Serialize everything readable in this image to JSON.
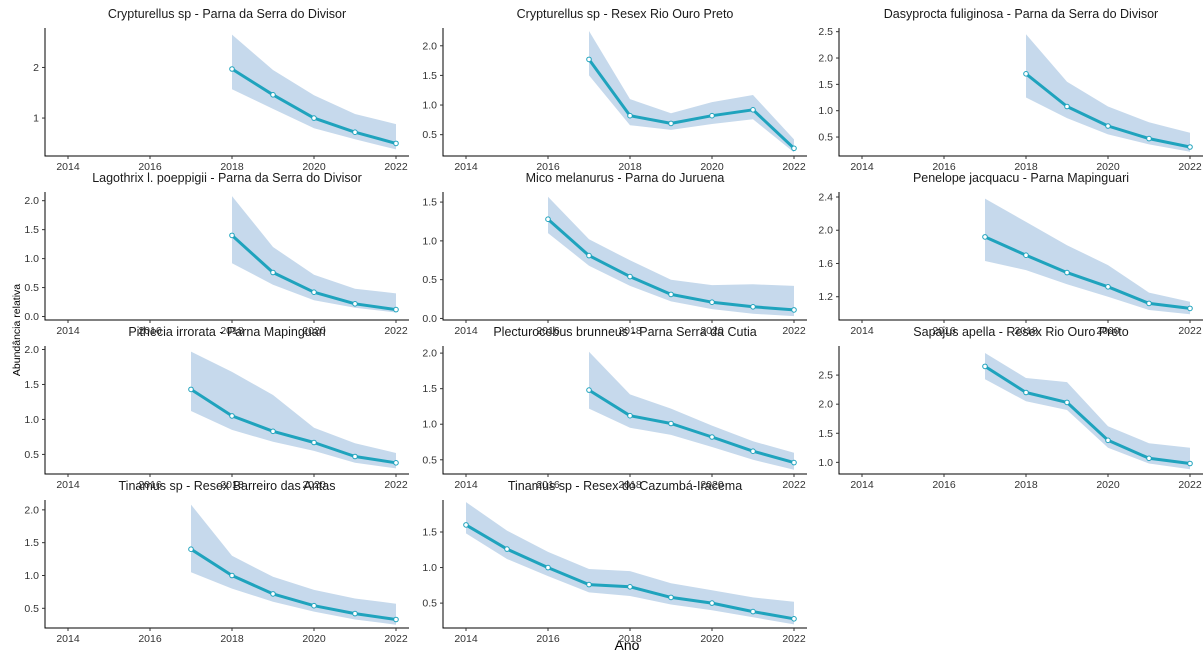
{
  "colors": {
    "line": "#1fa3bd",
    "ribbon": "#c6d9ec",
    "point_fill": "#ffffff",
    "point_stroke": "#1fa3bd",
    "axis": "#000000",
    "text": "#333333"
  },
  "chart_data": {
    "type": "line",
    "layout": "facet-grid",
    "xlabel": "Ano",
    "ylabel": "Abundância relativa",
    "xticks": [
      2014,
      2016,
      2018,
      2020,
      2022
    ],
    "xlim": [
      2013.8,
      2022.3
    ],
    "panels": [
      {
        "title": "Crypturellus sp - Parna da Serra do Divisor",
        "x": [
          2018,
          2019,
          2020,
          2021,
          2022
        ],
        "y": [
          1.97,
          1.46,
          1.0,
          0.72,
          0.5
        ],
        "lower": [
          1.57,
          1.18,
          0.8,
          0.58,
          0.38
        ],
        "upper": [
          2.65,
          1.95,
          1.45,
          1.08,
          0.88
        ],
        "ylim": [
          0.25,
          2.78
        ],
        "yticks": [
          1,
          2
        ],
        "ytick_labels": [
          "1",
          "2"
        ]
      },
      {
        "title": "Crypturellus sp - Resex Rio Ouro Preto",
        "x": [
          2017,
          2018,
          2019,
          2020,
          2021,
          2022
        ],
        "y": [
          1.77,
          0.82,
          0.69,
          0.82,
          0.92,
          0.27
        ],
        "lower": [
          1.5,
          0.66,
          0.58,
          0.68,
          0.76,
          0.2
        ],
        "upper": [
          2.25,
          1.1,
          0.86,
          1.05,
          1.17,
          0.42
        ],
        "ylim": [
          0.14,
          2.3
        ],
        "yticks": [
          0.5,
          1.0,
          1.5,
          2.0
        ],
        "ytick_labels": [
          "0.5",
          "1.0",
          "1.5",
          "2.0"
        ]
      },
      {
        "title": "Dasyprocta fuliginosa - Parna da Serra do Divisor",
        "x": [
          2018,
          2019,
          2020,
          2021,
          2022
        ],
        "y": [
          1.7,
          1.08,
          0.71,
          0.47,
          0.31
        ],
        "lower": [
          1.25,
          0.86,
          0.55,
          0.36,
          0.22
        ],
        "upper": [
          2.45,
          1.55,
          1.08,
          0.78,
          0.58
        ],
        "ylim": [
          0.14,
          2.57
        ],
        "yticks": [
          0.5,
          1.0,
          1.5,
          2.0,
          2.5
        ],
        "ytick_labels": [
          "0.5",
          "1.0",
          "1.5",
          "2.0",
          "2.5"
        ]
      },
      {
        "title": "Lagothrix l. poeppigii - Parna da Serra do Divisor",
        "x": [
          2018,
          2019,
          2020,
          2021,
          2022
        ],
        "y": [
          1.4,
          0.76,
          0.42,
          0.22,
          0.12
        ],
        "lower": [
          0.92,
          0.55,
          0.28,
          0.15,
          0.07
        ],
        "upper": [
          2.08,
          1.2,
          0.72,
          0.48,
          0.4
        ],
        "ylim": [
          -0.06,
          2.15
        ],
        "yticks": [
          0.0,
          0.5,
          1.0,
          1.5,
          2.0
        ],
        "ytick_labels": [
          "0.0",
          "0.5",
          "1.0",
          "1.5",
          "2.0"
        ]
      },
      {
        "title": "Mico melanurus - Parna do Juruena",
        "x": [
          2016,
          2017,
          2018,
          2019,
          2020,
          2021,
          2022
        ],
        "y": [
          1.28,
          0.81,
          0.54,
          0.31,
          0.21,
          0.15,
          0.11
        ],
        "lower": [
          1.1,
          0.68,
          0.42,
          0.22,
          0.12,
          0.06,
          0.03
        ],
        "upper": [
          1.57,
          1.02,
          0.75,
          0.5,
          0.43,
          0.44,
          0.42
        ],
        "ylim": [
          -0.02,
          1.63
        ],
        "yticks": [
          0.0,
          0.5,
          1.0,
          1.5
        ],
        "ytick_labels": [
          "0.0",
          "0.5",
          "1.0",
          "1.5"
        ]
      },
      {
        "title": "Penelope jacquacu - Parna Mapinguari",
        "x": [
          2017,
          2018,
          2019,
          2020,
          2021,
          2022
        ],
        "y": [
          1.92,
          1.7,
          1.49,
          1.32,
          1.12,
          1.06
        ],
        "lower": [
          1.63,
          1.52,
          1.35,
          1.2,
          1.04,
          0.99
        ],
        "upper": [
          2.38,
          2.1,
          1.82,
          1.58,
          1.25,
          1.14
        ],
        "ylim": [
          0.92,
          2.46
        ],
        "yticks": [
          1.2,
          1.6,
          2.0,
          2.4
        ],
        "ytick_labels": [
          "1.2",
          "1.6",
          "2.0",
          "2.4"
        ]
      },
      {
        "title": "Pithecia irrorata - Parna Mapinguari",
        "x": [
          2017,
          2018,
          2019,
          2020,
          2021,
          2022
        ],
        "y": [
          1.43,
          1.05,
          0.83,
          0.67,
          0.47,
          0.38
        ],
        "lower": [
          1.12,
          0.85,
          0.68,
          0.55,
          0.38,
          0.3
        ],
        "upper": [
          1.97,
          1.68,
          1.35,
          0.88,
          0.66,
          0.52
        ],
        "ylim": [
          0.22,
          2.05
        ],
        "yticks": [
          0.5,
          1.0,
          1.5,
          2.0
        ],
        "ytick_labels": [
          "0.5",
          "1.0",
          "1.5",
          "2.0"
        ]
      },
      {
        "title": "Plecturocebus brunneus - Parna Serra da Cutia",
        "x": [
          2017,
          2018,
          2019,
          2020,
          2021,
          2022
        ],
        "y": [
          1.48,
          1.12,
          1.01,
          0.82,
          0.62,
          0.46
        ],
        "lower": [
          1.22,
          0.95,
          0.85,
          0.68,
          0.5,
          0.36
        ],
        "upper": [
          2.02,
          1.42,
          1.22,
          0.98,
          0.76,
          0.6
        ],
        "ylim": [
          0.3,
          2.1
        ],
        "yticks": [
          0.5,
          1.0,
          1.5,
          2.0
        ],
        "ytick_labels": [
          "0.5",
          "1.0",
          "1.5",
          "2.0"
        ]
      },
      {
        "title": "Sapajus apella - Resex Rio Ouro Preto",
        "x": [
          2017,
          2018,
          2019,
          2020,
          2021,
          2022
        ],
        "y": [
          2.65,
          2.2,
          2.03,
          1.38,
          1.07,
          0.98
        ],
        "lower": [
          2.43,
          2.05,
          1.9,
          1.25,
          0.98,
          0.88
        ],
        "upper": [
          2.88,
          2.45,
          2.38,
          1.62,
          1.33,
          1.25
        ],
        "ylim": [
          0.8,
          3.0
        ],
        "yticks": [
          1.0,
          1.5,
          2.0,
          2.5
        ],
        "ytick_labels": [
          "1.0",
          "1.5",
          "2.0",
          "2.5"
        ]
      },
      {
        "title": "Tinamus sp - Resex Barreiro das Antas",
        "x": [
          2017,
          2018,
          2019,
          2020,
          2021,
          2022
        ],
        "y": [
          1.4,
          1.0,
          0.72,
          0.54,
          0.42,
          0.33
        ],
        "lower": [
          1.05,
          0.8,
          0.6,
          0.45,
          0.33,
          0.25
        ],
        "upper": [
          2.08,
          1.3,
          0.98,
          0.78,
          0.65,
          0.57
        ],
        "ylim": [
          0.2,
          2.15
        ],
        "yticks": [
          0.5,
          1.0,
          1.5,
          2.0
        ],
        "ytick_labels": [
          "0.5",
          "1.0",
          "1.5",
          "2.0"
        ]
      },
      {
        "title": "Tinamus sp - Resex do Cazumbá-Iracema",
        "x": [
          2014,
          2015,
          2016,
          2017,
          2018,
          2019,
          2020,
          2021,
          2022
        ],
        "y": [
          1.6,
          1.26,
          1.0,
          0.76,
          0.73,
          0.58,
          0.5,
          0.38,
          0.28
        ],
        "lower": [
          1.48,
          1.12,
          0.88,
          0.65,
          0.6,
          0.48,
          0.4,
          0.3,
          0.2
        ],
        "upper": [
          1.92,
          1.52,
          1.22,
          0.98,
          0.95,
          0.78,
          0.68,
          0.58,
          0.52
        ],
        "ylim": [
          0.15,
          1.95
        ],
        "yticks": [
          0.5,
          1.0,
          1.5
        ],
        "ytick_labels": [
          "0.5",
          "1.0",
          "1.5"
        ]
      }
    ]
  }
}
